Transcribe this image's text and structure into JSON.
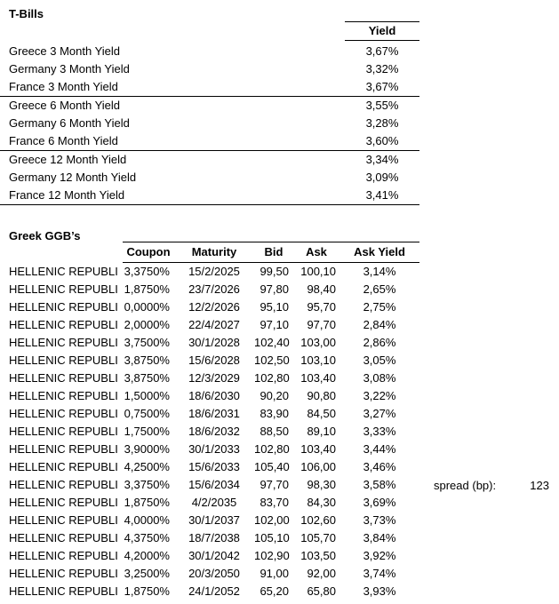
{
  "page": {
    "background": "#ffffff",
    "text_color": "#000000",
    "border_color": "#000000"
  },
  "tbills": {
    "title": "T-Bills",
    "yield_header": "Yield",
    "groups": [
      {
        "rows": [
          {
            "label": "Greece 3 Month Yield",
            "value": "3,67%"
          },
          {
            "label": "Germany 3 Month Yield",
            "value": "3,32%"
          },
          {
            "label": "France 3 Month Yield",
            "value": "3,67%"
          }
        ]
      },
      {
        "rows": [
          {
            "label": "Greece 6 Month Yield",
            "value": "3,55%"
          },
          {
            "label": "Germany 6 Month Yield",
            "value": "3,28%"
          },
          {
            "label": "France 6 Month Yield",
            "value": "3,60%"
          }
        ]
      },
      {
        "rows": [
          {
            "label": "Greece 12 Month Yield",
            "value": "3,34%"
          },
          {
            "label": "Germany 12 Month Yield",
            "value": "3,09%"
          },
          {
            "label": "France 12 Month Yield",
            "value": "3,41%"
          }
        ]
      }
    ]
  },
  "ggb": {
    "title": "Greek GGB’s",
    "headers": {
      "coupon": "Coupon",
      "maturity": "Maturity",
      "bid": "Bid",
      "ask": "Ask",
      "ask_yield": "Ask Yield"
    },
    "rows": [
      {
        "name": "HELLENIC REPUBLI",
        "coupon": "3,3750%",
        "maturity": "15/2/2025",
        "bid": "99,50",
        "ask": "100,10",
        "ask_yield": "3,14%"
      },
      {
        "name": "HELLENIC REPUBLI",
        "coupon": "1,8750%",
        "maturity": "23/7/2026",
        "bid": "97,80",
        "ask": "98,40",
        "ask_yield": "2,65%"
      },
      {
        "name": "HELLENIC REPUBLI",
        "coupon": "0,0000%",
        "maturity": "12/2/2026",
        "bid": "95,10",
        "ask": "95,70",
        "ask_yield": "2,75%"
      },
      {
        "name": "HELLENIC REPUBLI",
        "coupon": "2,0000%",
        "maturity": "22/4/2027",
        "bid": "97,10",
        "ask": "97,70",
        "ask_yield": "2,84%"
      },
      {
        "name": "HELLENIC REPUBLI",
        "coupon": "3,7500%",
        "maturity": "30/1/2028",
        "bid": "102,40",
        "ask": "103,00",
        "ask_yield": "2,86%"
      },
      {
        "name": "HELLENIC REPUBLI",
        "coupon": "3,8750%",
        "maturity": "15/6/2028",
        "bid": "102,50",
        "ask": "103,10",
        "ask_yield": "3,05%"
      },
      {
        "name": "HELLENIC REPUBLI",
        "coupon": "3,8750%",
        "maturity": "12/3/2029",
        "bid": "102,80",
        "ask": "103,40",
        "ask_yield": "3,08%"
      },
      {
        "name": "HELLENIC REPUBLI",
        "coupon": "1,5000%",
        "maturity": "18/6/2030",
        "bid": "90,20",
        "ask": "90,80",
        "ask_yield": "3,22%"
      },
      {
        "name": "HELLENIC REPUBLI",
        "coupon": "0,7500%",
        "maturity": "18/6/2031",
        "bid": "83,90",
        "ask": "84,50",
        "ask_yield": "3,27%"
      },
      {
        "name": "HELLENIC REPUBLI",
        "coupon": "1,7500%",
        "maturity": "18/6/2032",
        "bid": "88,50",
        "ask": "89,10",
        "ask_yield": "3,33%"
      },
      {
        "name": "HELLENIC REPUBLI",
        "coupon": "3,9000%",
        "maturity": "30/1/2033",
        "bid": "102,80",
        "ask": "103,40",
        "ask_yield": "3,44%"
      },
      {
        "name": "HELLENIC REPUBLI",
        "coupon": "4,2500%",
        "maturity": "15/6/2033",
        "bid": "105,40",
        "ask": "106,00",
        "ask_yield": "3,46%"
      },
      {
        "name": "HELLENIC REPUBLI",
        "coupon": "3,3750%",
        "maturity": "15/6/2034",
        "bid": "97,70",
        "ask": "98,30",
        "ask_yield": "3,58%"
      },
      {
        "name": "HELLENIC REPUBLI",
        "coupon": "1,8750%",
        "maturity": "4/2/2035",
        "bid": "83,70",
        "ask": "84,30",
        "ask_yield": "3,69%"
      },
      {
        "name": "HELLENIC REPUBLI",
        "coupon": "4,0000%",
        "maturity": "30/1/2037",
        "bid": "102,00",
        "ask": "102,60",
        "ask_yield": "3,73%"
      },
      {
        "name": "HELLENIC REPUBLI",
        "coupon": "4,3750%",
        "maturity": "18/7/2038",
        "bid": "105,10",
        "ask": "105,70",
        "ask_yield": "3,84%"
      },
      {
        "name": "HELLENIC REPUBLI",
        "coupon": "4,2000%",
        "maturity": "30/1/2042",
        "bid": "102,90",
        "ask": "103,50",
        "ask_yield": "3,92%"
      },
      {
        "name": "HELLENIC REPUBLI",
        "coupon": "3,2500%",
        "maturity": "20/3/2050",
        "bid": "91,00",
        "ask": "92,00",
        "ask_yield": "3,74%"
      },
      {
        "name": "HELLENIC REPUBLI",
        "coupon": "1,8750%",
        "maturity": "24/1/2052",
        "bid": "65,20",
        "ask": "65,80",
        "ask_yield": "3,93%"
      }
    ]
  },
  "spread": {
    "label": "spread (bp):",
    "value": "123"
  }
}
